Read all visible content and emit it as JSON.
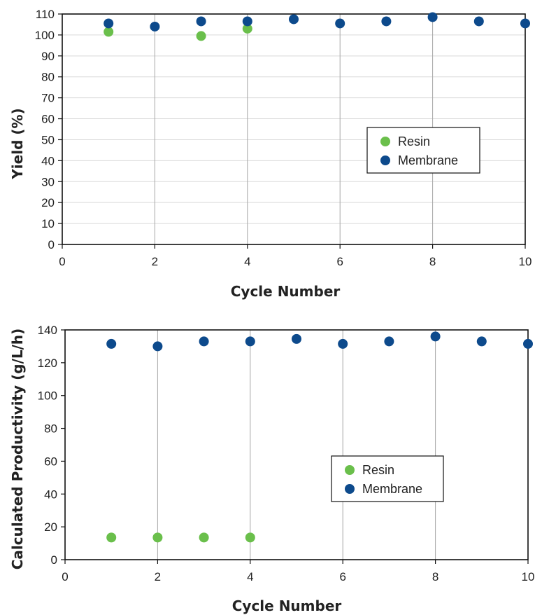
{
  "chart_data": [
    {
      "type": "scatter",
      "title": "",
      "xlabel": "Cycle Number",
      "ylabel": "Yield (%)",
      "xlim": [
        0,
        10
      ],
      "ylim": [
        0,
        110
      ],
      "xticks": [
        0,
        2,
        4,
        6,
        8,
        10
      ],
      "yticks": [
        0,
        10,
        20,
        30,
        40,
        50,
        60,
        70,
        80,
        90,
        100,
        110
      ],
      "x_gridlines": [
        2,
        4,
        6,
        8
      ],
      "y_gridlines": [
        10,
        20,
        30,
        40,
        50,
        60,
        70,
        80,
        90,
        100
      ],
      "legend_position": "center-right",
      "series": [
        {
          "name": "Resin",
          "color": "#6abf4b",
          "x": [
            1,
            3,
            4
          ],
          "y": [
            101.5,
            99.5,
            103
          ]
        },
        {
          "name": "Membrane",
          "color": "#0d4a8c",
          "x": [
            1,
            2,
            3,
            4,
            5,
            6,
            7,
            8,
            9,
            10
          ],
          "y": [
            105.5,
            104,
            106.5,
            106.5,
            107.5,
            105.5,
            106.5,
            108.5,
            106.5,
            105.5
          ]
        }
      ]
    },
    {
      "type": "scatter",
      "title": "",
      "xlabel": "Cycle Number",
      "ylabel": "Calculated Productivity (g/L/h)",
      "xlim": [
        0,
        10
      ],
      "ylim": [
        0,
        140
      ],
      "xticks": [
        0,
        2,
        4,
        6,
        8,
        10
      ],
      "yticks": [
        0,
        20,
        40,
        60,
        80,
        100,
        120,
        140
      ],
      "x_gridlines": [
        2,
        4,
        6,
        8
      ],
      "y_gridlines": [],
      "legend_position": "center-right",
      "series": [
        {
          "name": "Resin",
          "color": "#6abf4b",
          "x": [
            1,
            2,
            3,
            4
          ],
          "y": [
            13.5,
            13.5,
            13.5,
            13.5
          ]
        },
        {
          "name": "Membrane",
          "color": "#0d4a8c",
          "x": [
            1,
            2,
            3,
            4,
            5,
            6,
            7,
            8,
            9,
            10
          ],
          "y": [
            131.5,
            130,
            133,
            133,
            134.5,
            131.5,
            133,
            136,
            133,
            131.5
          ]
        }
      ]
    }
  ]
}
